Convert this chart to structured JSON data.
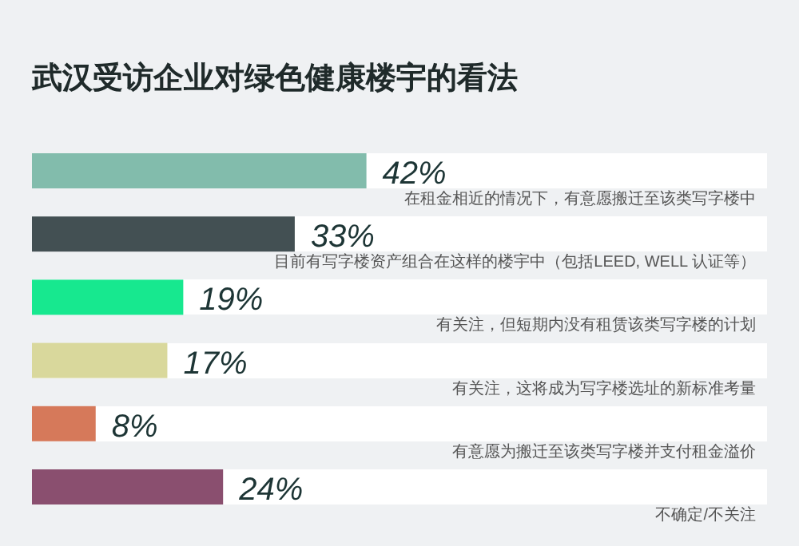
{
  "chart_data": {
    "type": "bar",
    "orientation": "horizontal",
    "title": "武汉受访企业对绿色健康楼宇的看法",
    "categories": [
      "在租金相近的情况下，有意愿搬迁至该类写字楼中",
      "目前有写字楼资产组合在这样的楼宇中（包括LEED, WELL 认证等）",
      "有关注，但短期内没有租赁该类写字楼的计划",
      "有关注，这将成为写字楼选址的新标准考量",
      "有意愿为搬迁至该类写字楼并支付租金溢价",
      "不确定/不关注"
    ],
    "values": [
      42,
      33,
      19,
      17,
      8,
      24
    ],
    "value_labels": [
      "42%",
      "33%",
      "19%",
      "17%",
      "8%",
      "24%"
    ],
    "colors": [
      "#82bcac",
      "#435053",
      "#17e88f",
      "#d9d89c",
      "#d6795a",
      "#8a4f6f"
    ]
  }
}
